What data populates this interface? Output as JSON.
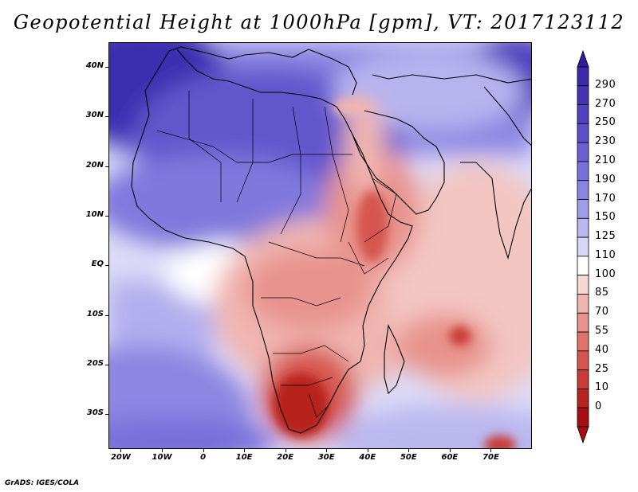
{
  "title": "Geopotential Height at 1000hPa [gpm], VT: 2017123112",
  "footer": "GrADS: IGES/COLA",
  "map": {
    "variable": "Geopotential Height",
    "level": "1000hPa",
    "units": "gpm",
    "valid_time": "2017123112",
    "lon_range": [
      -23,
      80
    ],
    "lat_range": [
      -37,
      45
    ],
    "lat_labels": [
      {
        "lat": 40,
        "label": "40N"
      },
      {
        "lat": 30,
        "label": "30N"
      },
      {
        "lat": 20,
        "label": "20N"
      },
      {
        "lat": 10,
        "label": "10N"
      },
      {
        "lat": 0,
        "label": "EQ"
      },
      {
        "lat": -10,
        "label": "10S"
      },
      {
        "lat": -20,
        "label": "20S"
      },
      {
        "lat": -30,
        "label": "30S"
      }
    ],
    "lon_labels": [
      {
        "lon": -20,
        "label": "20W"
      },
      {
        "lon": -10,
        "label": "10W"
      },
      {
        "lon": 0,
        "label": "0"
      },
      {
        "lon": 10,
        "label": "10E"
      },
      {
        "lon": 20,
        "label": "20E"
      },
      {
        "lon": 30,
        "label": "30E"
      },
      {
        "lon": 40,
        "label": "40E"
      },
      {
        "lon": 50,
        "label": "50E"
      },
      {
        "lon": 60,
        "label": "60E"
      },
      {
        "lon": 70,
        "label": "70E"
      }
    ]
  },
  "colorbar": {
    "labels": [
      "290",
      "270",
      "250",
      "230",
      "210",
      "190",
      "170",
      "150",
      "125",
      "110",
      "100",
      "85",
      "70",
      "55",
      "40",
      "25",
      "10",
      "0"
    ],
    "colors": [
      "#3a2aa8",
      "#4533b3",
      "#5140c0",
      "#5d4fc9",
      "#6b5fd2",
      "#7a70da",
      "#8c84e2",
      "#a19ce9",
      "#bbb8f0",
      "#d8d7f7",
      "#ffffff",
      "#f7d6d3",
      "#f0b5b0",
      "#e8938d",
      "#e0736c",
      "#d6564f",
      "#c93b36",
      "#b8221f",
      "#a50f12"
    ],
    "top_arrow_color": "#2d1f9a",
    "bottom_arrow_color": "#a50f12"
  }
}
